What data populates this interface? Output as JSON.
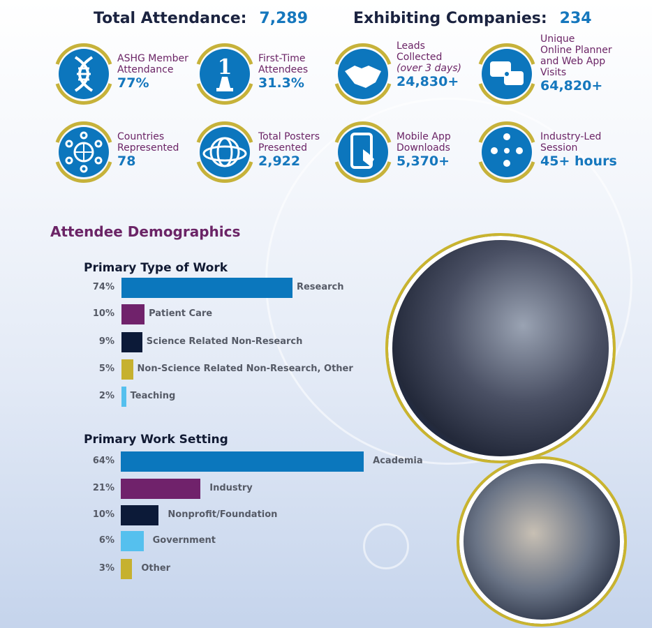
{
  "header": {
    "attendance_label": "Total Attendance:",
    "attendance_value": "7,289",
    "exhibitors_label": "Exhibiting Companies:",
    "exhibitors_value": "234"
  },
  "colors": {
    "blue": "#0c76bd",
    "gold": "#c6b23a",
    "purple": "#6b2466",
    "navy": "#0c1a38",
    "light_blue": "#55c0ee"
  },
  "stats": [
    {
      "icon": "dna-icon",
      "lines": [
        "ASHG Member",
        "Attendance"
      ],
      "value": "77%"
    },
    {
      "icon": "first-place-icon",
      "lines": [
        "First-Time",
        "Attendees"
      ],
      "value": "31.3%"
    },
    {
      "icon": "handshake-icon",
      "lines": [
        "Leads",
        "Collected"
      ],
      "note": "(over 3 days)",
      "value": "24,830+"
    },
    {
      "icon": "chat-network-icon",
      "lines": [
        "Unique",
        "Online Planner",
        "and Web App",
        "Visits"
      ],
      "value": "64,820+"
    },
    {
      "icon": "globe-network-icon",
      "lines": [
        "Countries",
        "Represented"
      ],
      "value": "78"
    },
    {
      "icon": "globe-orbit-icon",
      "lines": [
        "Total Posters",
        "Presented"
      ],
      "value": "2,922"
    },
    {
      "icon": "phone-touch-icon",
      "lines": [
        "Mobile App",
        "Downloads"
      ],
      "value": "5,370+"
    },
    {
      "icon": "people-idea-icon",
      "lines": [
        "Industry-Led",
        "Session"
      ],
      "value": "45+ hours"
    }
  ],
  "section_title": "Attendee Demographics",
  "chart_data": [
    {
      "type": "bar",
      "orientation": "horizontal",
      "title": "Primary Type of Work",
      "categories": [
        "Research",
        "Patient Care",
        "Science Related Non-Research",
        "Non-Science Related Non-Research, Other",
        "Teaching"
      ],
      "values": [
        74,
        10,
        9,
        5,
        2
      ],
      "labels": [
        "74%",
        "10%",
        "9%",
        "5%",
        "2%"
      ],
      "colors": [
        "#0b77bd",
        "#70226b",
        "#0c1a38",
        "#c6b12f",
        "#55c0ee"
      ],
      "grid": false
    },
    {
      "type": "bar",
      "orientation": "horizontal",
      "title": "Primary Work Setting",
      "categories": [
        "Academia",
        "Industry",
        "Nonprofit/Foundation",
        "Government",
        "Other"
      ],
      "values": [
        64,
        21,
        10,
        6,
        3
      ],
      "labels": [
        "64%",
        "21%",
        "10%",
        "6%",
        "3%"
      ],
      "colors": [
        "#0b77bd",
        "#70226b",
        "#0c1a38",
        "#55c0ee",
        "#c6b12f"
      ],
      "grid": false
    }
  ]
}
